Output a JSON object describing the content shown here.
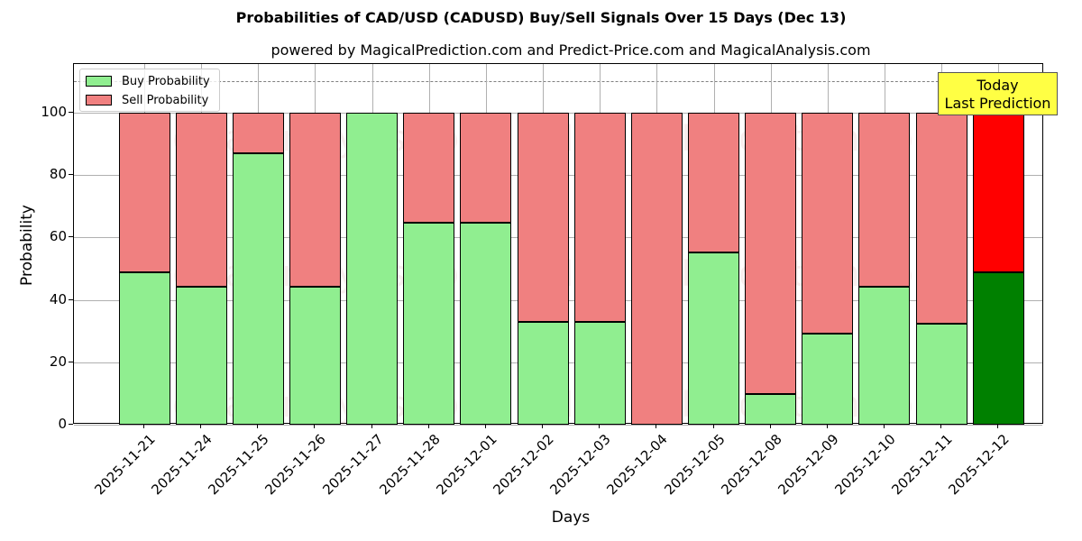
{
  "chart_data": {
    "type": "bar",
    "stacked": true,
    "title": "Probabilities of CAD/USD (CADUSD) Buy/Sell Signals Over 15 Days (Dec 13)",
    "subtitle": "powered by MagicalPrediction.com and Predict-Price.com and MagicalAnalysis.com",
    "xlabel": "Days",
    "ylabel": "Probability",
    "ylim": [
      0,
      115
    ],
    "yticks": [
      0,
      20,
      40,
      60,
      80,
      100
    ],
    "grid": true,
    "legend_position": "upper left",
    "categories": [
      "2025-11-21",
      "2025-11-24",
      "2025-11-25",
      "2025-11-26",
      "2025-11-27",
      "2025-11-28",
      "2025-12-01",
      "2025-12-02",
      "2025-12-03",
      "2025-12-04",
      "2025-12-05",
      "2025-12-08",
      "2025-12-09",
      "2025-12-10",
      "2025-12-11",
      "2025-12-12"
    ],
    "series": [
      {
        "name": "Buy Probability",
        "color": "#90ee90",
        "values": [
          48.8,
          44.2,
          87.0,
          44.2,
          100.0,
          64.7,
          64.7,
          33.0,
          33.0,
          0.0,
          55.2,
          9.8,
          29.2,
          44.2,
          32.4,
          48.8
        ]
      },
      {
        "name": "Sell Probability",
        "color": "#f08080",
        "values": [
          51.2,
          55.8,
          13.0,
          55.8,
          0.0,
          35.3,
          35.3,
          67.0,
          67.0,
          100.0,
          44.8,
          90.2,
          70.8,
          55.8,
          67.6,
          51.2
        ]
      }
    ],
    "highlight": {
      "index": 15,
      "buy_color": "#008000",
      "sell_color": "#ff0000"
    },
    "reference_line": {
      "y": 110,
      "style": "dashed"
    },
    "annotation": "Today\nLast Prediction"
  },
  "legend": {
    "buy": "Buy Probability",
    "sell": "Sell Probability"
  },
  "annotation": {
    "line1": "Today",
    "line2": "Last Prediction"
  },
  "watermarks": [
    "MagicalAnalysis.com",
    "MagicalPrediction.com"
  ]
}
